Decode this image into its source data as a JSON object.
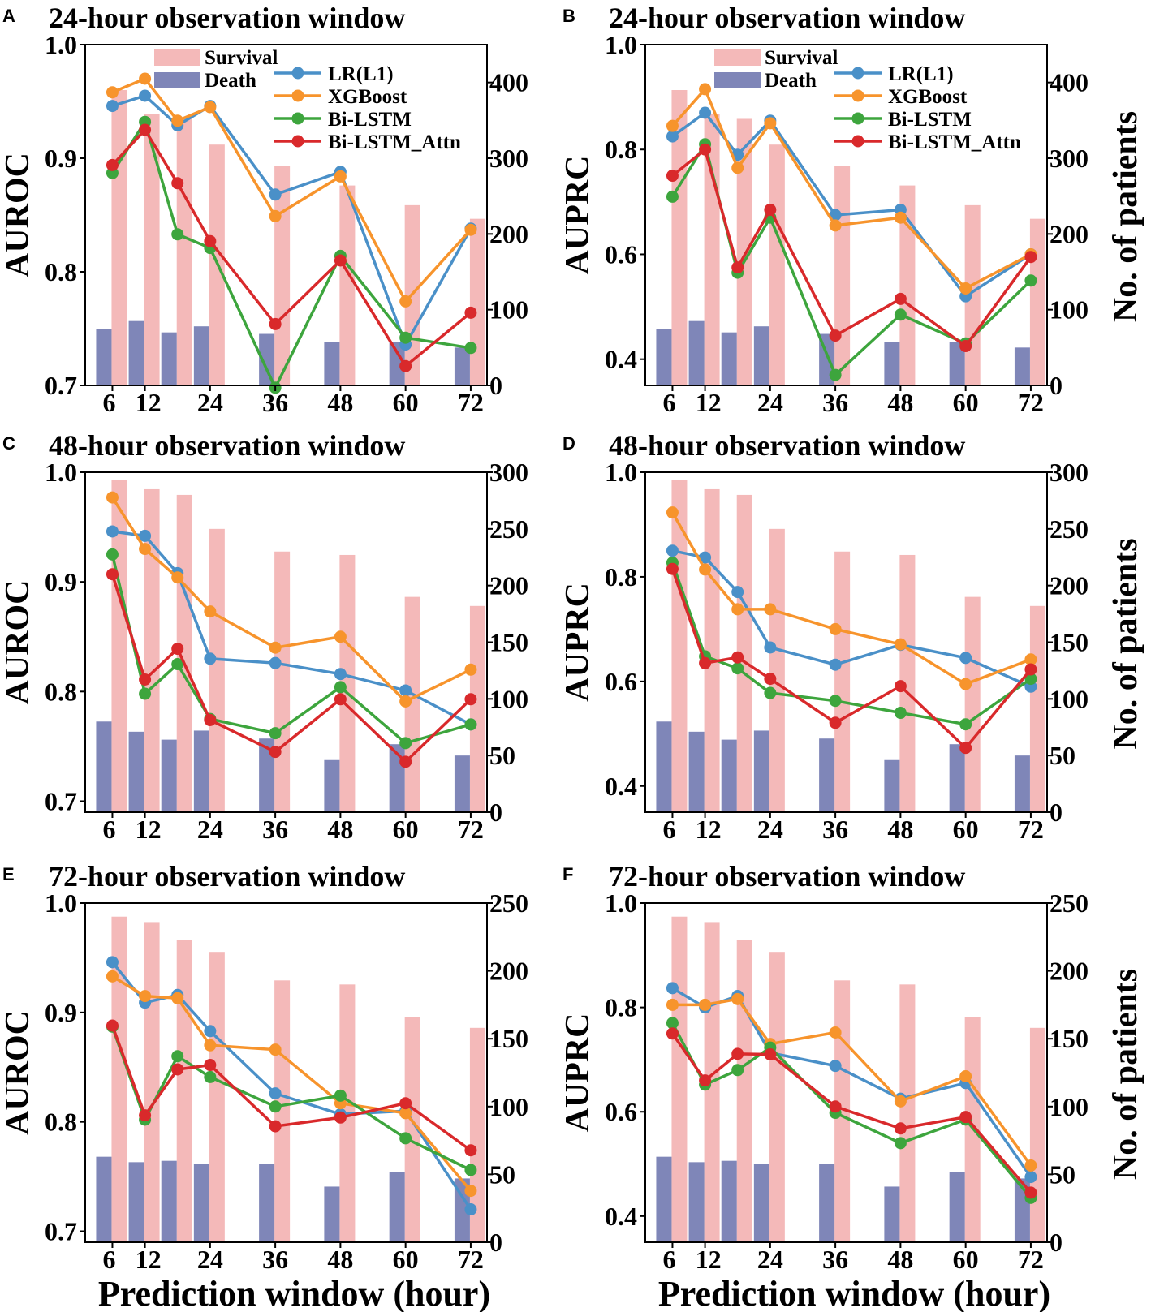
{
  "colors": {
    "survival": "#f4b9b9",
    "death": "#7f86b8",
    "lr": "#4a90c8",
    "xgb": "#f7942c",
    "bilstm": "#3da53d",
    "bilstm_attn": "#d9292b"
  },
  "legend": {
    "survival": "Survival",
    "death": "Death",
    "lr": "LR(L1)",
    "xgb": "XGBoost",
    "bilstm": "Bi-LSTM",
    "bilstm_attn": "Bi-LSTM_Attn"
  },
  "chart_data": [
    {
      "type": "bar+line",
      "letter": "A",
      "title": "24-hour observation window",
      "ylabel": "AUROC",
      "ylabel_right": "",
      "xlabel": "",
      "ylim": [
        0.7,
        1.0
      ],
      "yticks": [
        "0.7",
        "0.8",
        "0.9",
        "1.0"
      ],
      "ylim_right": [
        0,
        450
      ],
      "yticks_right": [
        "0",
        "100",
        "200",
        "300",
        "400"
      ],
      "x": [
        6,
        12,
        18,
        24,
        36,
        48,
        60,
        72
      ],
      "xticks": [
        "6",
        "12",
        "24",
        "36",
        "48",
        "60",
        "72"
      ],
      "bars": {
        "survival": [
          390,
          358,
          352,
          318,
          290,
          264,
          238,
          220
        ],
        "death": [
          75,
          85,
          70,
          78,
          68,
          57,
          57,
          50
        ]
      },
      "series": [
        {
          "name": "LR(L1)",
          "values": [
            0.946,
            0.955,
            0.929,
            0.946,
            0.868,
            0.888,
            0.736,
            0.838
          ]
        },
        {
          "name": "XGBoost",
          "values": [
            0.958,
            0.97,
            0.933,
            0.945,
            0.849,
            0.884,
            0.774,
            0.837
          ]
        },
        {
          "name": "Bi-LSTM",
          "values": [
            0.887,
            0.932,
            0.833,
            0.821,
            0.698,
            0.814,
            0.742,
            0.733
          ]
        },
        {
          "name": "Bi-LSTM_Attn",
          "values": [
            0.894,
            0.925,
            0.878,
            0.827,
            0.754,
            0.81,
            0.717,
            0.764
          ]
        }
      ]
    },
    {
      "type": "bar+line",
      "letter": "B",
      "title": "24-hour observation window",
      "ylabel": "AUPRC",
      "ylabel_right": "No. of patients",
      "xlabel": "",
      "ylim": [
        0.35,
        1.0
      ],
      "yticks": [
        "0.4",
        "0.6",
        "0.8",
        "1.0"
      ],
      "ylim_right": [
        0,
        450
      ],
      "yticks_right": [
        "0",
        "100",
        "200",
        "300",
        "400"
      ],
      "x": [
        6,
        12,
        18,
        24,
        36,
        48,
        60,
        72
      ],
      "xticks": [
        "6",
        "12",
        "24",
        "36",
        "48",
        "60",
        "72"
      ],
      "bars": {
        "survival": [
          390,
          358,
          352,
          318,
          290,
          264,
          238,
          220
        ],
        "death": [
          75,
          85,
          70,
          78,
          68,
          57,
          57,
          50
        ]
      },
      "series": [
        {
          "name": "LR(L1)",
          "values": [
            0.825,
            0.87,
            0.79,
            0.855,
            0.675,
            0.685,
            0.52,
            0.6
          ]
        },
        {
          "name": "XGBoost",
          "values": [
            0.845,
            0.915,
            0.765,
            0.85,
            0.655,
            0.67,
            0.535,
            0.6
          ]
        },
        {
          "name": "Bi-LSTM",
          "values": [
            0.71,
            0.81,
            0.565,
            0.67,
            0.37,
            0.485,
            0.43,
            0.55
          ]
        },
        {
          "name": "Bi-LSTM_Attn",
          "values": [
            0.75,
            0.8,
            0.575,
            0.685,
            0.445,
            0.515,
            0.425,
            0.595
          ]
        }
      ]
    },
    {
      "type": "bar+line",
      "letter": "C",
      "title": "48-hour observation window",
      "ylabel": "AUROC",
      "ylabel_right": "",
      "xlabel": "",
      "ylim": [
        0.69,
        1.0
      ],
      "yticks": [
        "0.7",
        "0.8",
        "0.9",
        "1.0"
      ],
      "ylim_right": [
        0,
        300
      ],
      "yticks_right": [
        "0",
        "50",
        "100",
        "150",
        "200",
        "250",
        "300"
      ],
      "x": [
        6,
        12,
        18,
        24,
        36,
        48,
        60,
        72
      ],
      "xticks": [
        "6",
        "12",
        "24",
        "36",
        "48",
        "60",
        "72"
      ],
      "bars": {
        "survival": [
          293,
          285,
          280,
          250,
          230,
          227,
          190,
          182
        ],
        "death": [
          80,
          71,
          64,
          72,
          65,
          46,
          60,
          50
        ]
      },
      "series": [
        {
          "name": "LR(L1)",
          "values": [
            0.946,
            0.942,
            0.908,
            0.83,
            0.826,
            0.816,
            0.801,
            0.77
          ]
        },
        {
          "name": "XGBoost",
          "values": [
            0.977,
            0.93,
            0.904,
            0.873,
            0.84,
            0.85,
            0.791,
            0.82
          ]
        },
        {
          "name": "Bi-LSTM",
          "values": [
            0.925,
            0.798,
            0.825,
            0.775,
            0.762,
            0.804,
            0.753,
            0.77
          ]
        },
        {
          "name": "Bi-LSTM_Attn",
          "values": [
            0.907,
            0.811,
            0.839,
            0.774,
            0.745,
            0.793,
            0.736,
            0.793
          ]
        }
      ]
    },
    {
      "type": "bar+line",
      "letter": "D",
      "title": "48-hour observation window",
      "ylabel": "AUPRC",
      "ylabel_right": "No. of patients",
      "xlabel": "",
      "ylim": [
        0.35,
        1.0
      ],
      "yticks": [
        "0.4",
        "0.6",
        "0.8",
        "1.0"
      ],
      "ylim_right": [
        0,
        300
      ],
      "yticks_right": [
        "0",
        "50",
        "100",
        "150",
        "200",
        "250",
        "300"
      ],
      "x": [
        6,
        12,
        18,
        24,
        36,
        48,
        60,
        72
      ],
      "xticks": [
        "6",
        "12",
        "24",
        "36",
        "48",
        "60",
        "72"
      ],
      "bars": {
        "survival": [
          293,
          285,
          280,
          250,
          230,
          227,
          190,
          182
        ],
        "death": [
          80,
          71,
          64,
          72,
          65,
          46,
          60,
          50
        ]
      },
      "series": [
        {
          "name": "LR(L1)",
          "values": [
            0.85,
            0.837,
            0.771,
            0.665,
            0.632,
            0.67,
            0.645,
            0.59
          ]
        },
        {
          "name": "XGBoost",
          "values": [
            0.923,
            0.814,
            0.738,
            0.738,
            0.7,
            0.671,
            0.595,
            0.642
          ]
        },
        {
          "name": "Bi-LSTM",
          "values": [
            0.827,
            0.648,
            0.625,
            0.578,
            0.563,
            0.54,
            0.518,
            0.605
          ]
        },
        {
          "name": "Bi-LSTM_Attn",
          "values": [
            0.815,
            0.635,
            0.646,
            0.605,
            0.521,
            0.591,
            0.473,
            0.623
          ]
        }
      ]
    },
    {
      "type": "bar+line",
      "letter": "E",
      "title": "72-hour observation window",
      "ylabel": "AUROC",
      "ylabel_right": "",
      "xlabel": "Prediction window (hour)",
      "ylim": [
        0.69,
        1.0
      ],
      "yticks": [
        "0.7",
        "0.8",
        "0.9",
        "1.0"
      ],
      "ylim_right": [
        0,
        250
      ],
      "yticks_right": [
        "0",
        "50",
        "100",
        "150",
        "200",
        "250"
      ],
      "x": [
        6,
        12,
        18,
        24,
        36,
        48,
        60,
        72
      ],
      "xticks": [
        "6",
        "12",
        "24",
        "36",
        "48",
        "60",
        "72"
      ],
      "bars": {
        "survival": [
          240,
          236,
          223,
          214,
          193,
          190,
          166,
          158
        ],
        "death": [
          63,
          59,
          60,
          58,
          58,
          41,
          52,
          47
        ]
      },
      "series": [
        {
          "name": "LR(L1)",
          "values": [
            0.946,
            0.909,
            0.916,
            0.883,
            0.826,
            0.807,
            0.81,
            0.72
          ]
        },
        {
          "name": "XGBoost",
          "values": [
            0.933,
            0.915,
            0.913,
            0.87,
            0.866,
            0.817,
            0.808,
            0.737
          ]
        },
        {
          "name": "Bi-LSTM",
          "values": [
            0.887,
            0.802,
            0.86,
            0.841,
            0.814,
            0.824,
            0.785,
            0.756
          ]
        },
        {
          "name": "Bi-LSTM_Attn",
          "values": [
            0.888,
            0.806,
            0.848,
            0.852,
            0.796,
            0.804,
            0.817,
            0.774
          ]
        }
      ]
    },
    {
      "type": "bar+line",
      "letter": "F",
      "title": "72-hour observation window",
      "ylabel": "AUPRC",
      "ylabel_right": "No. of patients",
      "xlabel": "Prediction window (hour)",
      "ylim": [
        0.35,
        1.0
      ],
      "yticks": [
        "0.4",
        "0.6",
        "0.8",
        "1.0"
      ],
      "ylim_right": [
        0,
        250
      ],
      "yticks_right": [
        "0",
        "50",
        "100",
        "150",
        "200",
        "250"
      ],
      "x": [
        6,
        12,
        18,
        24,
        36,
        48,
        60,
        72
      ],
      "xticks": [
        "6",
        "12",
        "24",
        "36",
        "48",
        "60",
        "72"
      ],
      "bars": {
        "survival": [
          240,
          236,
          223,
          214,
          193,
          190,
          166,
          158
        ],
        "death": [
          63,
          59,
          60,
          58,
          58,
          41,
          52,
          47
        ]
      },
      "series": [
        {
          "name": "LR(L1)",
          "values": [
            0.837,
            0.8,
            0.822,
            0.713,
            0.688,
            0.625,
            0.655,
            0.475
          ]
        },
        {
          "name": "XGBoost",
          "values": [
            0.805,
            0.805,
            0.816,
            0.73,
            0.752,
            0.62,
            0.668,
            0.497
          ]
        },
        {
          "name": "Bi-LSTM",
          "values": [
            0.77,
            0.652,
            0.68,
            0.723,
            0.598,
            0.54,
            0.585,
            0.435
          ]
        },
        {
          "name": "Bi-LSTM_Attn",
          "values": [
            0.75,
            0.66,
            0.711,
            0.71,
            0.61,
            0.568,
            0.59,
            0.445
          ]
        }
      ]
    }
  ]
}
